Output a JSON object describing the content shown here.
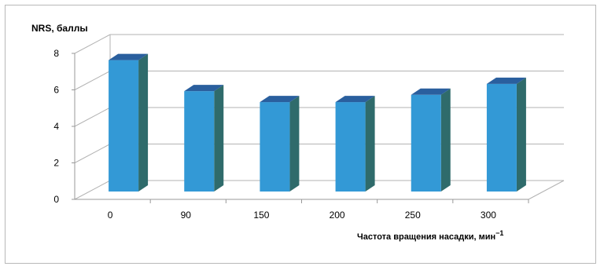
{
  "chart_data": {
    "type": "bar",
    "categories": [
      "0",
      "90",
      "150",
      "200",
      "250",
      "300"
    ],
    "values": [
      7.2,
      5.5,
      4.9,
      4.9,
      5.3,
      5.9
    ],
    "ylabel": "NRS, баллы",
    "xlabel": "Частота вращения насадки, мин",
    "xlabel_sup": "−1",
    "ylim": [
      0,
      8
    ],
    "yticks": [
      "0",
      "2",
      "4",
      "6",
      "8"
    ],
    "grid": true,
    "legend": "none",
    "colors": {
      "bar_front": "#3399d6",
      "bar_top": "#2a5f9e",
      "bar_side": "#2f6b6b",
      "grid": "#b3b3b3"
    }
  }
}
